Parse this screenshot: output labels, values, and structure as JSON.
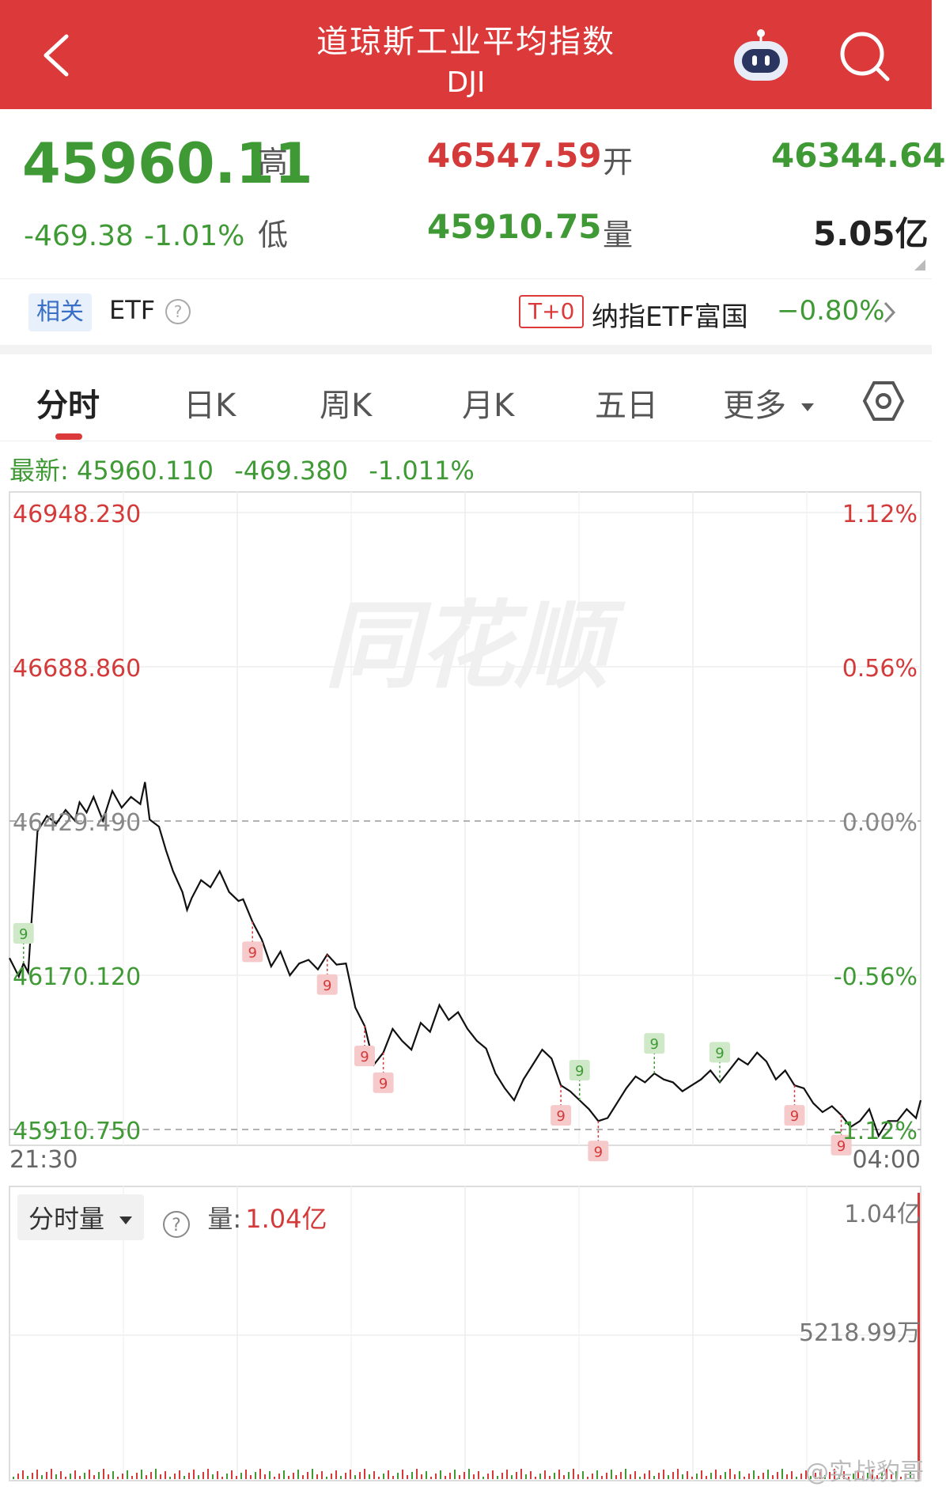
{
  "header": {
    "title": "道琼斯工业平均指数",
    "subtitle": "DJI",
    "icons": [
      "back-icon",
      "robot-icon",
      "search-icon"
    ],
    "bg_color": "#dc3a3a"
  },
  "quote": {
    "price": "45960.11",
    "change": "-469.38",
    "change_pct": "-1.01%",
    "high_label": "高",
    "high": "46547.59",
    "low_label": "低",
    "low": "45910.75",
    "open_label": "开",
    "open": "46344.64",
    "volume_label": "量",
    "volume": "5.05亿"
  },
  "etf": {
    "tag": "相关",
    "label": "ETF",
    "t0_badge": "T+0",
    "fund_name": "纳指ETF富国",
    "fund_change": "−0.80%"
  },
  "tabs": [
    {
      "label": "分时",
      "active": true
    },
    {
      "label": "日K"
    },
    {
      "label": "周K"
    },
    {
      "label": "月K"
    },
    {
      "label": "五日"
    },
    {
      "label": "更多"
    }
  ],
  "latest": {
    "label": "最新:",
    "price": "45960.110",
    "change": "-469.380",
    "pct": "-1.011%"
  },
  "watermark": "同花顺",
  "chart_data": {
    "type": "line",
    "y_ticks_left": [
      "46948.230",
      "46688.860",
      "46429.490",
      "46170.120",
      "45910.750"
    ],
    "y_ticks_right": [
      "1.12%",
      "0.56%",
      "0.00%",
      "-0.56%",
      "-1.12%"
    ],
    "ylim": [
      45910.75,
      46948.23
    ],
    "prev_close": 46429.49,
    "x_ticks": [
      "21:30",
      "04:00"
    ],
    "series": [
      {
        "x_index": [
          0,
          4,
          6,
          8,
          12,
          16,
          20,
          24,
          28,
          30,
          33,
          36,
          40,
          44,
          48,
          52,
          56,
          58,
          60,
          64,
          67,
          70,
          74,
          76,
          78,
          82,
          86,
          90,
          94,
          98,
          100,
          104,
          108,
          112,
          116,
          120,
          124,
          128,
          132,
          136,
          140,
          144,
          148,
          152,
          156,
          160,
          164,
          168,
          172,
          176,
          180,
          184,
          188,
          192,
          196,
          200,
          204,
          208,
          212,
          216,
          220,
          224,
          228,
          232,
          236,
          240,
          244,
          248,
          252,
          256,
          260,
          264,
          268,
          272,
          276,
          280,
          284,
          288,
          292,
          296,
          300,
          304,
          308,
          312,
          316,
          320,
          324,
          328,
          332,
          336,
          340,
          344,
          348,
          352,
          356,
          360,
          364,
          368,
          372,
          376,
          380,
          384,
          388,
          390
        ],
        "values": [
          46199,
          46168,
          46190,
          46175,
          46412,
          46438,
          46425,
          46448,
          46430,
          46461,
          46444,
          46470,
          46430,
          46480,
          46452,
          46470,
          46458,
          46495,
          46432,
          46420,
          46380,
          46345,
          46310,
          46280,
          46300,
          46330,
          46318,
          46345,
          46310,
          46295,
          46298,
          46260,
          46230,
          46185,
          46210,
          46170,
          46190,
          46196,
          46180,
          46205,
          46188,
          46190,
          46116,
          46085,
          46020,
          46040,
          46080,
          46060,
          46045,
          46090,
          46075,
          46120,
          46095,
          46108,
          46080,
          46060,
          46047,
          46005,
          45980,
          45960,
          45995,
          46020,
          46045,
          46030,
          45985,
          45975,
          45960,
          45945,
          45925,
          45930,
          45955,
          45980,
          46000,
          45990,
          46005,
          45995,
          45990,
          45975,
          45985,
          45995,
          46010,
          45990,
          46010,
          46030,
          46020,
          46040,
          46025,
          45995,
          46010,
          45985,
          45980,
          45955,
          45940,
          45950,
          45935,
          45915,
          45925,
          45945,
          45900,
          45925,
          45925,
          45945,
          45930,
          45960
        ]
      }
    ],
    "signal_markers": [
      {
        "label": "9",
        "type": "buy",
        "x_index": 6
      },
      {
        "label": "9",
        "type": "sell",
        "x_index": 104
      },
      {
        "label": "9",
        "type": "sell",
        "x_index": 136
      },
      {
        "label": "9",
        "type": "sell",
        "x_index": 152
      },
      {
        "label": "9",
        "type": "sell",
        "x_index": 160
      },
      {
        "label": "9",
        "type": "sell",
        "x_index": 236
      },
      {
        "label": "9",
        "type": "buy",
        "x_index": 244
      },
      {
        "label": "9",
        "type": "sell",
        "x_index": 252
      },
      {
        "label": "9",
        "type": "buy",
        "x_index": 276
      },
      {
        "label": "9",
        "type": "buy",
        "x_index": 304
      },
      {
        "label": "9",
        "type": "sell",
        "x_index": 336
      },
      {
        "label": "9",
        "type": "sell",
        "x_index": 356
      }
    ]
  },
  "volume": {
    "selector": "分时量",
    "label": "量:",
    "value": "1.04亿",
    "y_ticks": [
      "1.04亿",
      "5218.99万"
    ]
  },
  "weibo_mark": "@实战豹哥"
}
